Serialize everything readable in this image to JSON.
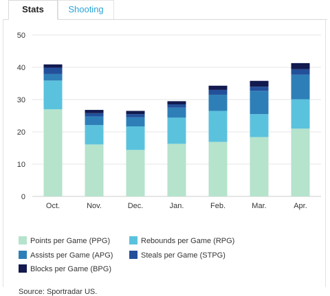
{
  "tabs": [
    {
      "label": "Stats",
      "active": true
    },
    {
      "label": "Shooting",
      "active": false
    }
  ],
  "colors": {
    "active_tab_text": "#222222",
    "inactive_tab_text": "#2aa3d6",
    "gridline": "#e6e6e6"
  },
  "chart_data": {
    "type": "bar",
    "stacked": true,
    "categories": [
      "Oct.",
      "Nov.",
      "Dec.",
      "Jan.",
      "Feb.",
      "Mar.",
      "Apr."
    ],
    "ylim": [
      0,
      50
    ],
    "yticks": [
      0,
      10,
      20,
      30,
      40,
      50
    ],
    "grid": true,
    "legend_position": "bottom",
    "series": [
      {
        "name": "Points per Game (PPG)",
        "color": "#b5e3cc",
        "values": [
          27.0,
          16.1,
          14.4,
          16.3,
          16.9,
          18.4,
          21.0
        ]
      },
      {
        "name": "Rebounds per Game (RPG)",
        "color": "#5bc2dd",
        "values": [
          8.9,
          6.0,
          7.3,
          8.1,
          9.6,
          7.1,
          9.1
        ]
      },
      {
        "name": "Assists per Game (APG)",
        "color": "#2e7fb8",
        "values": [
          2.0,
          2.7,
          2.8,
          3.1,
          5.0,
          7.2,
          7.6
        ]
      },
      {
        "name": "Steals per Game (STPG)",
        "color": "#23509a",
        "values": [
          2.0,
          1.0,
          1.0,
          1.0,
          1.5,
          1.3,
          1.7
        ]
      },
      {
        "name": "Blocks per Game (BPG)",
        "color": "#121a4f",
        "values": [
          1.0,
          1.0,
          1.0,
          1.0,
          1.3,
          1.8,
          1.9
        ]
      }
    ]
  },
  "source": "Source: Sportradar US."
}
